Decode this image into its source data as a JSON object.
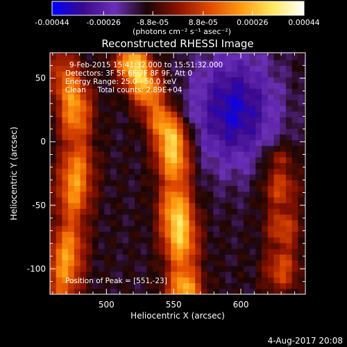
{
  "chart_data": {
    "type": "heatmap",
    "title": "Reconstructed RHESSI Image",
    "xlabel": "Heliocentric X (arcsec)",
    "ylabel": "Heliocentric Y (arcsec)",
    "xlim": [
      458,
      648
    ],
    "ylim": [
      -120,
      70
    ],
    "xticks": [
      500,
      550,
      600
    ],
    "yticks": [
      -100,
      -50,
      0,
      50
    ],
    "colorbar": {
      "ticks": [
        -0.00044,
        -0.00026,
        -8.8e-05,
        8.8e-05,
        0.00026,
        0.00044
      ],
      "tick_labels": [
        "-0.00044",
        "-0.00026",
        "-8.8e-05",
        "8.8e-05",
        "0.00026",
        "0.00044"
      ],
      "unit_label": "(photons cm⁻² s⁻¹ asec⁻²)",
      "range": [
        -0.00044,
        0.00044
      ],
      "colors": [
        "#0000ff",
        "#3b0a8c",
        "#6b2fb8",
        "#1a0505",
        "#8a1200",
        "#e04a00",
        "#ff9a10",
        "#ffe860",
        "#ffffff"
      ]
    },
    "annotations": [
      "9-Feb-2015 15:41:32.000 to 15:51:32.000",
      "Detectors: 3F 5F 6F 7F 8F 9F, Att 0",
      "Energy Range: 25.0 - 50.0 keV",
      "Clean     Total counts: 2.89E+04",
      "Position of Peak = [551,-23]"
    ],
    "peak": {
      "x": 551,
      "y": -23
    },
    "bright_ridges": [
      {
        "name": "left",
        "points": [
          [
            468,
            60
          ],
          [
            476,
            30
          ],
          [
            478,
            -10
          ],
          [
            476,
            -40
          ],
          [
            474,
            -60
          ],
          [
            470,
            -90
          ],
          [
            468,
            -115
          ]
        ],
        "peak_value": 0.00034
      },
      {
        "name": "center",
        "points": [
          [
            520,
            62
          ],
          [
            535,
            30
          ],
          [
            548,
            5
          ],
          [
            551,
            -23
          ],
          [
            552,
            -50
          ],
          [
            555,
            -80
          ],
          [
            558,
            -115
          ]
        ],
        "peak_value": 0.00044
      },
      {
        "name": "right",
        "points": [
          [
            628,
            -15
          ],
          [
            630,
            -50
          ],
          [
            632,
            -80
          ],
          [
            630,
            -105
          ]
        ],
        "peak_value": 0.00022
      }
    ],
    "negative_region": {
      "center": [
        595,
        25
      ],
      "min_value": -0.00038
    }
  },
  "footer_date": "4-Aug-2017 20:08"
}
